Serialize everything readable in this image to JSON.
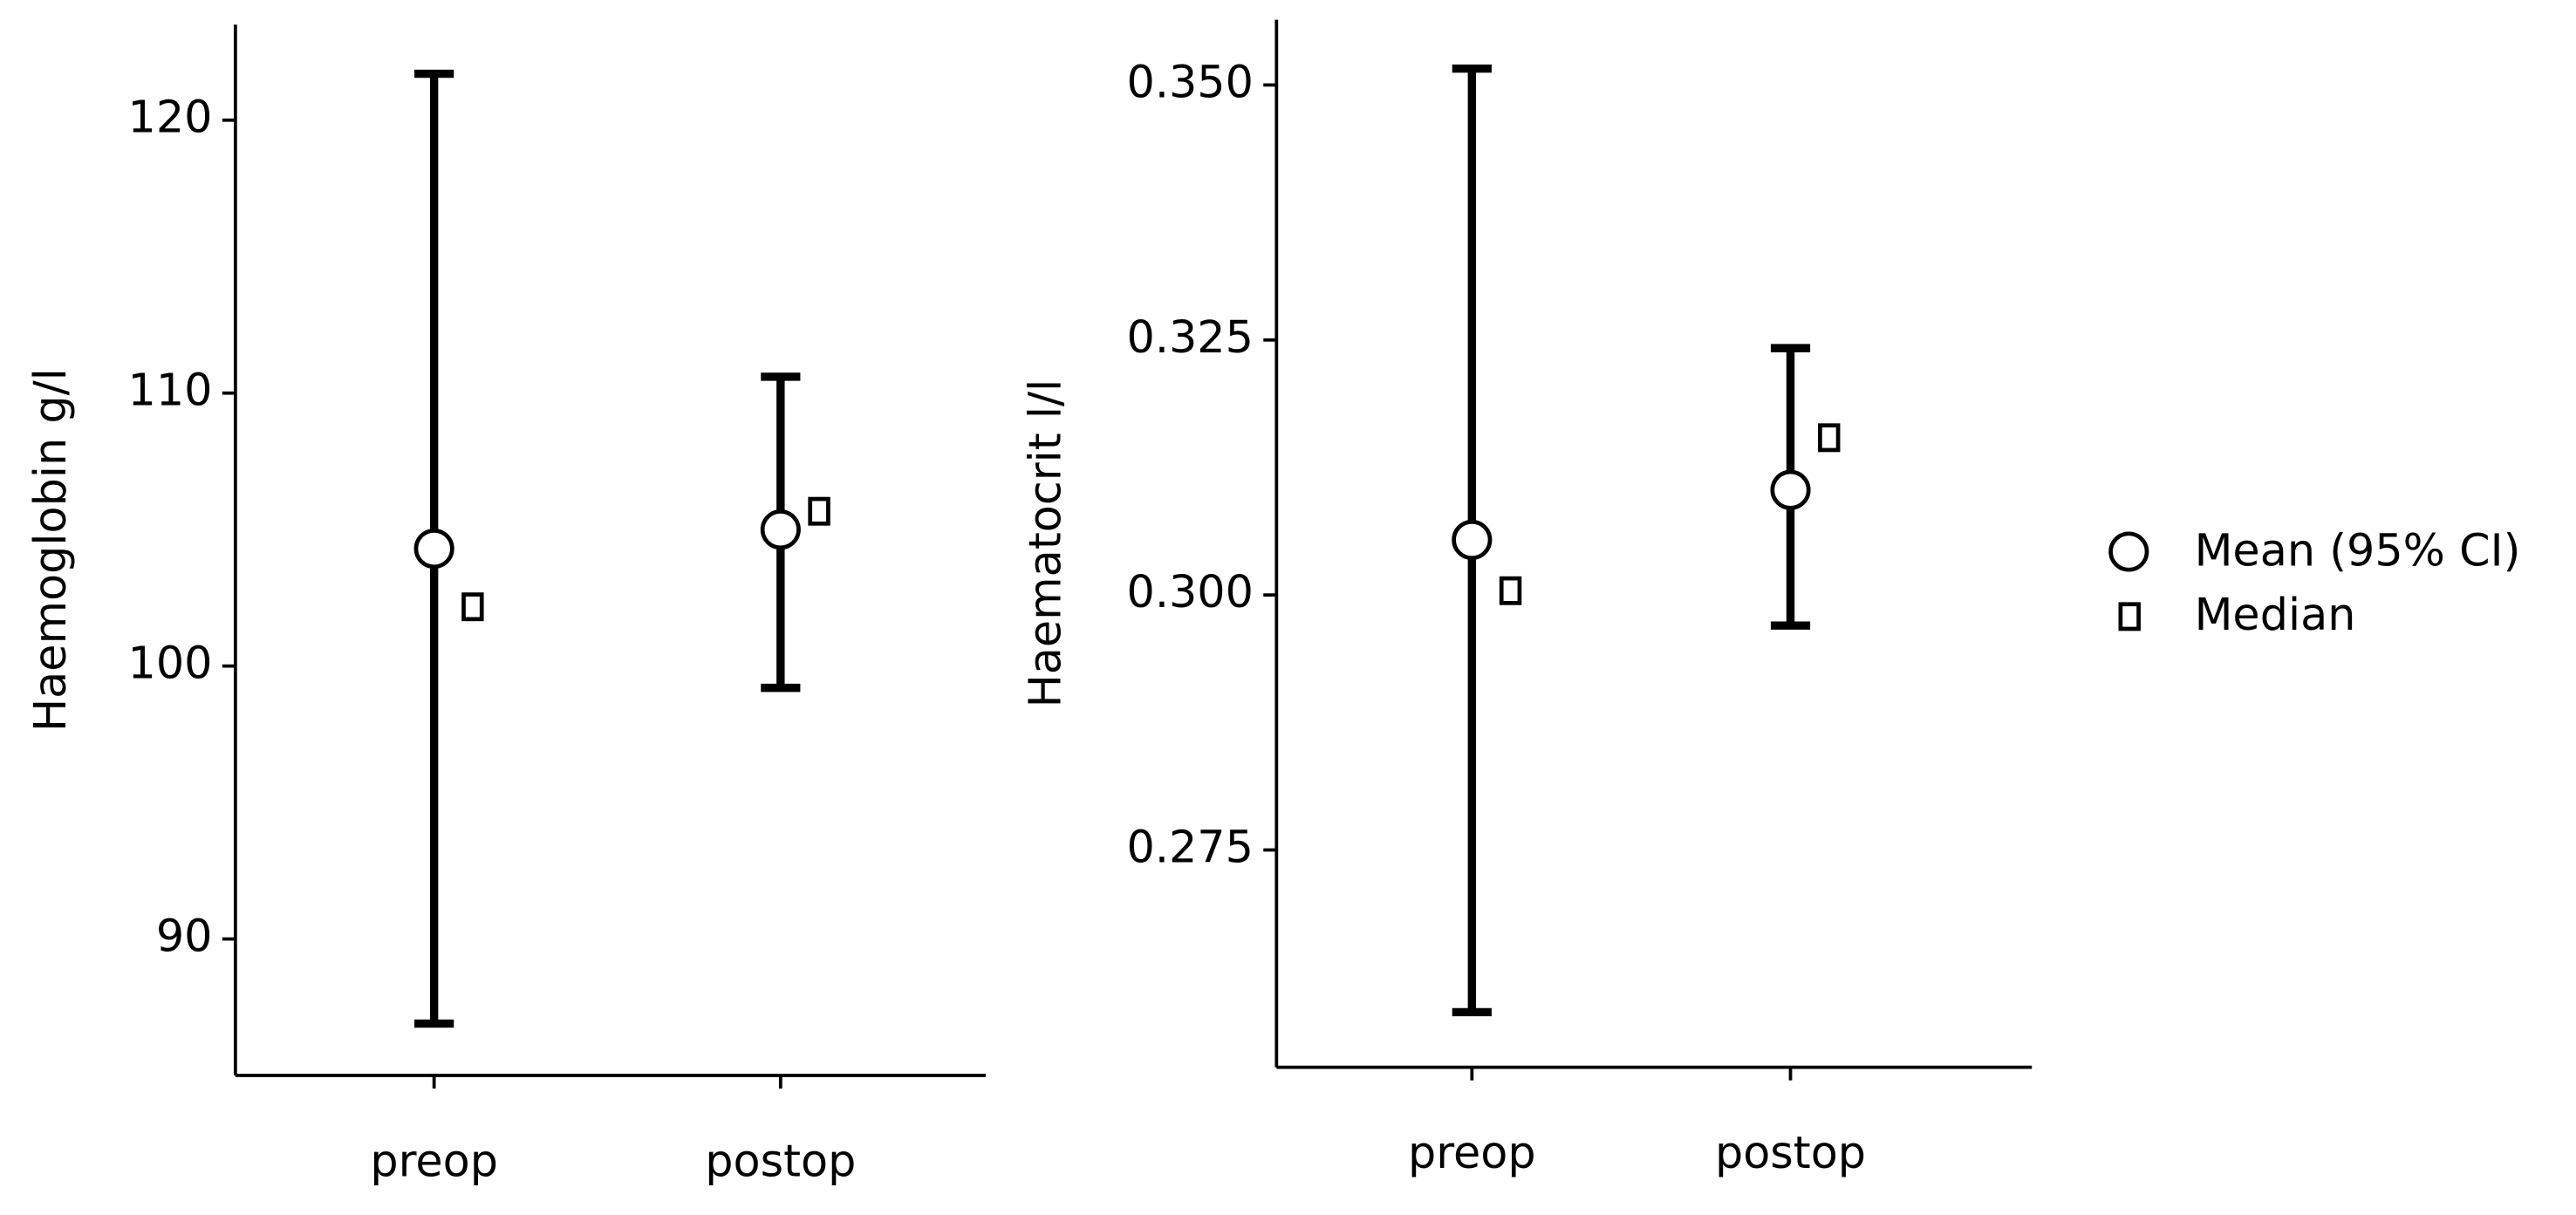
{
  "chart_data": [
    {
      "type": "errorbar",
      "y_label": "Haemoglobin g/l",
      "categories": [
        "preop",
        "postop"
      ],
      "mean": [
        104.3,
        105.0
      ],
      "ci_low": [
        86.9,
        99.2
      ],
      "ci_high": [
        121.7,
        110.6
      ],
      "median": [
        102.2,
        105.7
      ],
      "ylim": [
        85,
        123.5
      ],
      "yticks": [
        90,
        100,
        110,
        120
      ],
      "color": "#000000"
    },
    {
      "type": "errorbar",
      "y_label": "Haematocrit l/l",
      "categories": [
        "preop",
        "postop"
      ],
      "mean": [
        0.3054,
        0.3103
      ],
      "ci_low": [
        0.2591,
        0.297
      ],
      "ci_high": [
        0.3516,
        0.3242
      ],
      "median": [
        0.3005,
        0.3155
      ],
      "ylim": [
        0.2537,
        0.3564
      ],
      "yticks": [
        0.275,
        {
          "value": 0.3,
          "label": "0.300"
        },
        0.325,
        {
          "value": 0.35,
          "label": "0.350"
        }
      ],
      "color": "#000000"
    }
  ],
  "legend": {
    "labels": [
      "Mean (95% CI)",
      "Median"
    ]
  }
}
